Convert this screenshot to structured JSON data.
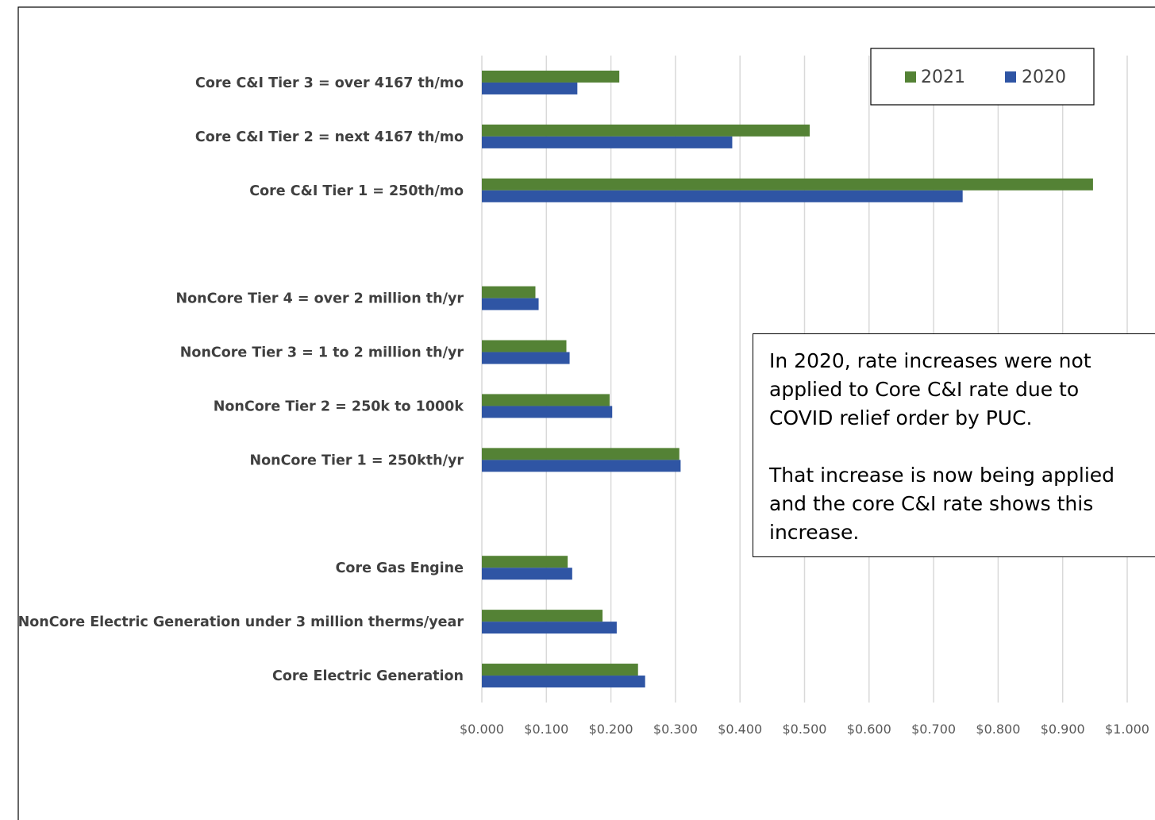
{
  "chart_data": {
    "type": "bar",
    "orientation": "horizontal",
    "categories": [
      "Core C&I Tier 3 = over 4167 th/mo",
      "Core C&I Tier 2 = next 4167 th/mo",
      "Core C&I Tier 1 = 250th/mo",
      "",
      "NonCore Tier 4 = over 2 million th/yr",
      "NonCore Tier 3 = 1 to 2 million th/yr",
      "NonCore Tier 2 = 250k to 1000k",
      "NonCore Tier 1 = 250kth/yr",
      "",
      "Core Gas Engine",
      "NonCore Electric Generation under 3 million therms/year",
      "Core Electric Generation"
    ],
    "series": [
      {
        "name": "2021",
        "color": "#548235",
        "values": [
          0.213,
          0.508,
          0.947,
          null,
          0.083,
          0.131,
          0.198,
          0.306,
          null,
          0.133,
          0.187,
          0.242
        ]
      },
      {
        "name": "2020",
        "color": "#2f55a4",
        "values": [
          0.148,
          0.388,
          0.745,
          null,
          0.088,
          0.136,
          0.202,
          0.308,
          null,
          0.14,
          0.209,
          0.253
        ]
      }
    ],
    "xlim": [
      0,
      1.0
    ],
    "x_ticks": [
      "$0.000",
      "$0.100",
      "$0.200",
      "$0.300",
      "$0.400",
      "$0.500",
      "$0.600",
      "$0.700",
      "$0.800",
      "$0.900",
      "$1.000"
    ],
    "title": "",
    "xlabel": "",
    "ylabel": "",
    "grid": "vertical",
    "legend": {
      "placement": "top-right",
      "entries": [
        "2021",
        "2020"
      ]
    },
    "annotation": {
      "lines": [
        "In 2020, rate increases were not",
        "applied to Core C&I rate due to",
        "COVID relief order by PUC.",
        "",
        "That increase is now being applied",
        "and the core C&I rate shows this",
        "increase."
      ]
    }
  }
}
